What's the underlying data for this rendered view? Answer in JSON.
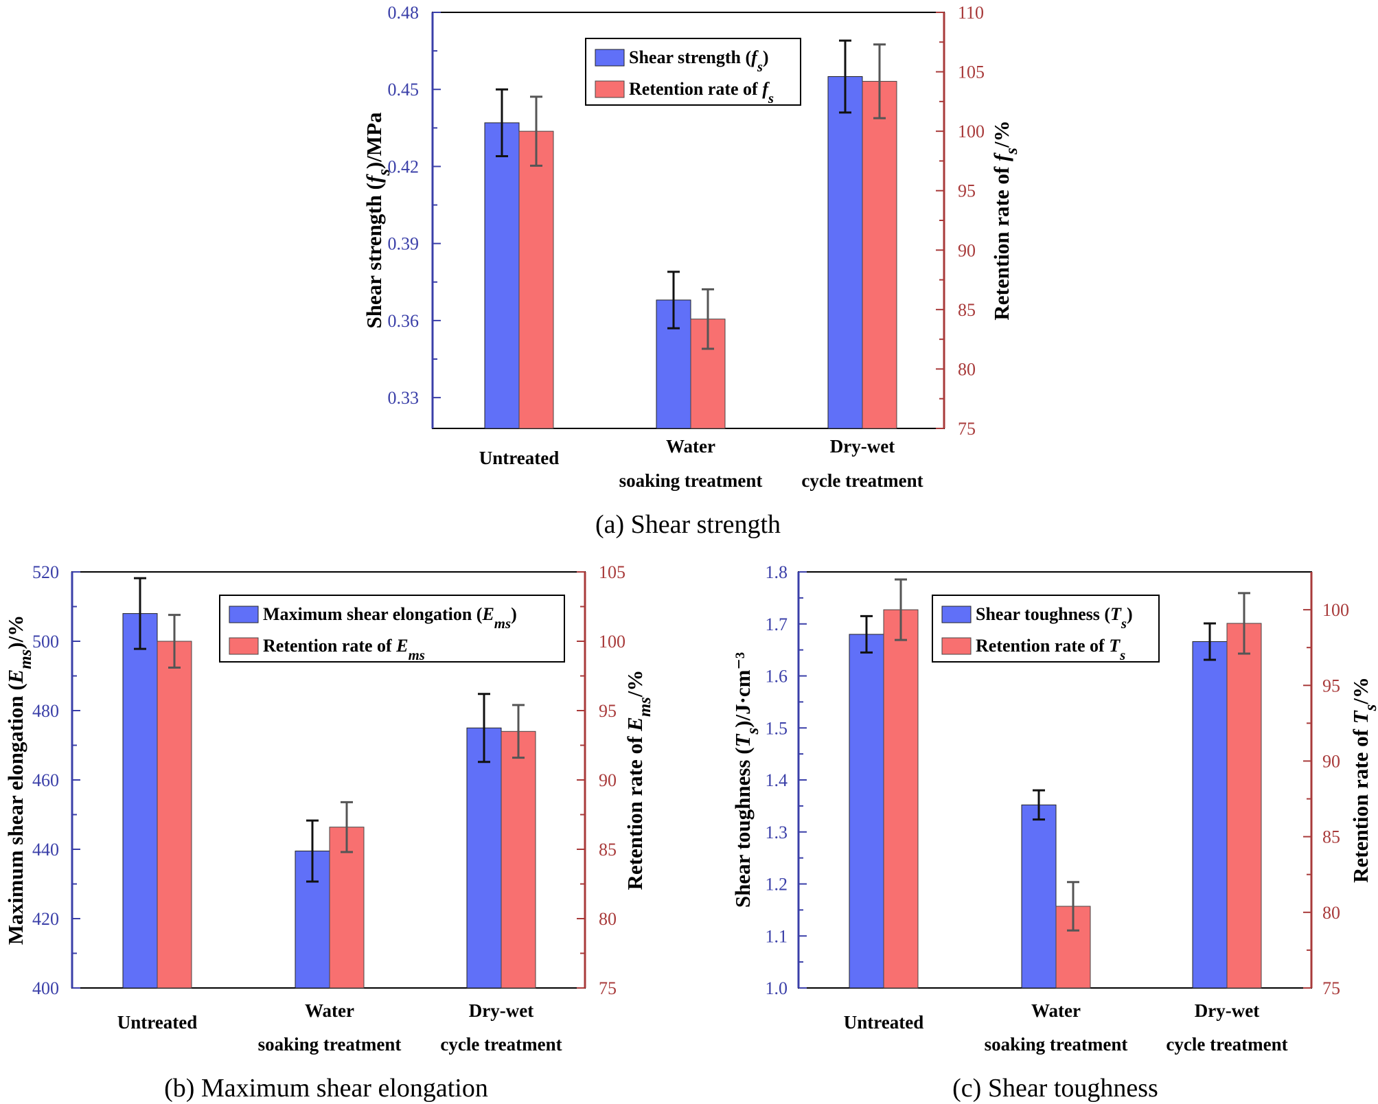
{
  "colors": {
    "blue_bar": "#6070F8",
    "red_bar": "#F87070",
    "left_axis": "#3A3FA8",
    "right_axis": "#A83A3A",
    "err_black": "#111111",
    "err_gray": "#555555"
  },
  "charts": [
    {
      "id": "a",
      "caption": "(a) Shear strength",
      "ylabel_left": {
        "main": "Shear strength (",
        "sym": "f",
        "sub": "s",
        "tail": ")/MPa"
      },
      "ylabel_right": {
        "main": "Retention rate of ",
        "sym": "f",
        "sub": "s",
        "tail": "/%"
      },
      "legend_left": {
        "main": "Shear strength (",
        "sym": "f",
        "sub": "s",
        "tail": ")"
      },
      "legend_right": {
        "main": "Retention rate of ",
        "sym": "f",
        "sub": "s",
        "tail": ""
      },
      "yticks_left": [
        "0.33",
        "0.36",
        "0.39",
        "0.42",
        "0.45",
        "0.48"
      ],
      "yticks_right": [
        "75",
        "80",
        "85",
        "90",
        "95",
        "100",
        "105",
        "110"
      ]
    },
    {
      "id": "b",
      "caption": "(b) Maximum shear elongation",
      "ylabel_left": {
        "main": "Maximum shear elongation (",
        "sym": "E",
        "sub": "ms",
        "tail": ")/%"
      },
      "ylabel_right": {
        "main": "Retention rate of ",
        "sym": "E",
        "sub": "ms",
        "tail": "/%"
      },
      "legend_left": {
        "main": "Maximum shear elongation (",
        "sym": "E",
        "sub": "ms",
        "tail": ")"
      },
      "legend_right": {
        "main": "Retention rate of ",
        "sym": "E",
        "sub": "ms",
        "tail": ""
      },
      "yticks_left": [
        "400",
        "420",
        "440",
        "460",
        "480",
        "500",
        "520"
      ],
      "yticks_right": [
        "75",
        "80",
        "85",
        "90",
        "95",
        "100",
        "105"
      ]
    },
    {
      "id": "c",
      "caption": "(c) Shear toughness",
      "ylabel_left": {
        "main": "Shear toughness (",
        "sym": "T",
        "sub": "s",
        "tail": ")/J·cm⁻³"
      },
      "ylabel_right": {
        "main": "Retention rate of ",
        "sym": "T",
        "sub": "s",
        "tail": "/%"
      },
      "legend_left": {
        "main": "Shear toughness (",
        "sym": "T",
        "sub": "s",
        "tail": ")"
      },
      "legend_right": {
        "main": "Retention rate of ",
        "sym": "T",
        "sub": "s",
        "tail": ""
      },
      "yticks_left": [
        "1.0",
        "1.1",
        "1.2",
        "1.3",
        "1.4",
        "1.5",
        "1.6",
        "1.7",
        "1.8"
      ],
      "yticks_right": [
        "75",
        "80",
        "85",
        "90",
        "95",
        "100"
      ]
    }
  ],
  "chart_data": [
    {
      "type": "bar",
      "title": "(a) Shear strength",
      "categories": [
        [
          "Untreated"
        ],
        [
          "Water",
          "soaking treatment"
        ],
        [
          "Dry-wet",
          "cycle treatment"
        ]
      ],
      "series": [
        {
          "name": "Shear strength (fs)",
          "axis": "left",
          "values": [
            0.437,
            0.368,
            0.455
          ],
          "errors": [
            0.013,
            0.011,
            0.014
          ]
        },
        {
          "name": "Retention rate of fs",
          "axis": "right",
          "values": [
            100,
            84.2,
            104.2
          ],
          "errors": [
            2.9,
            2.5,
            3.1
          ]
        }
      ],
      "ylim_left": [
        0.318,
        0.48
      ],
      "ylim_right": [
        75,
        110
      ],
      "legend": "top-center"
    },
    {
      "type": "bar",
      "title": "(b) Maximum shear elongation",
      "categories": [
        [
          "Untreated"
        ],
        [
          "Water",
          "soaking treatment"
        ],
        [
          "Dry-wet",
          "cycle treatment"
        ]
      ],
      "series": [
        {
          "name": "Maximum shear elongation (Ems)",
          "axis": "left",
          "values": [
            508,
            439.5,
            475
          ],
          "errors": [
            10.2,
            8.8,
            9.8
          ]
        },
        {
          "name": "Retention rate of Ems",
          "axis": "right",
          "values": [
            100,
            86.6,
            93.5
          ],
          "errors": [
            1.9,
            1.8,
            1.9
          ]
        }
      ],
      "ylim_left": [
        400,
        520
      ],
      "ylim_right": [
        75,
        105
      ],
      "legend": "top-right"
    },
    {
      "type": "bar",
      "title": "(c) Shear toughness",
      "categories": [
        [
          "Untreated"
        ],
        [
          "Water",
          "soaking treatment"
        ],
        [
          "Dry-wet",
          "cycle treatment"
        ]
      ],
      "series": [
        {
          "name": "Shear toughness (Ts)",
          "axis": "left",
          "values": [
            1.68,
            1.352,
            1.666
          ],
          "errors": [
            0.035,
            0.028,
            0.035
          ]
        },
        {
          "name": "Retention rate of Ts",
          "axis": "right",
          "values": [
            100,
            80.4,
            99.1
          ],
          "errors": [
            2.0,
            1.6,
            2.0
          ]
        }
      ],
      "ylim_left": [
        1.0,
        1.8
      ],
      "ylim_right": [
        75,
        102.5
      ],
      "legend": "top-right"
    }
  ]
}
